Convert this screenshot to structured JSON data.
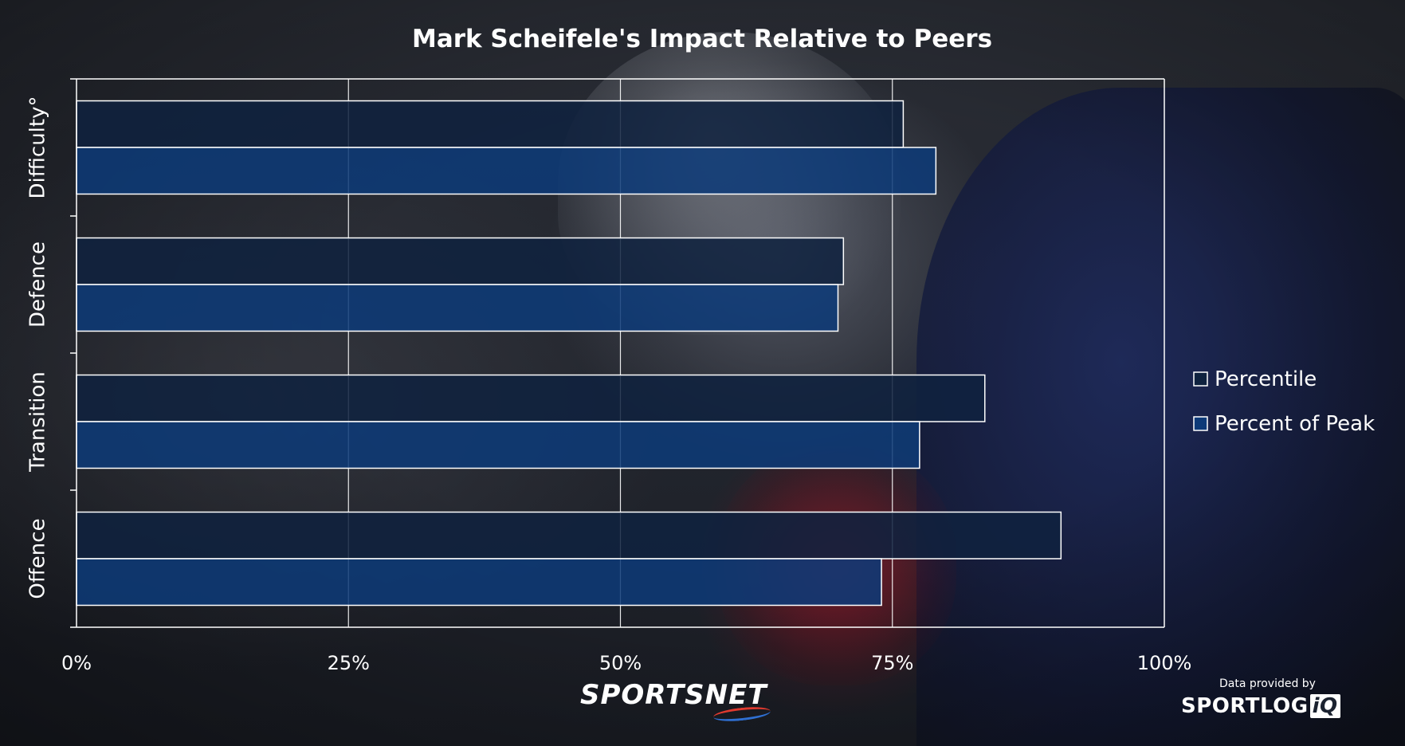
{
  "chart_data": {
    "type": "bar",
    "orientation": "horizontal",
    "title": "Mark Scheifele's Impact Relative to Peers",
    "categories": [
      "Difficulty°",
      "Defence",
      "Transition",
      "Offence"
    ],
    "series": [
      {
        "name": "Percentile",
        "values": [
          76,
          70.5,
          83.5,
          90.5
        ]
      },
      {
        "name": "Percent of Peak",
        "values": [
          79,
          70,
          77.5,
          74
        ]
      }
    ],
    "xlim": [
      0,
      100
    ],
    "x_ticks": [
      "0%",
      "25%",
      "50%",
      "75%",
      "100%"
    ],
    "x_tick_values": [
      0,
      25,
      50,
      75,
      100
    ],
    "grid": true,
    "legend_position": "right",
    "colors": {
      "Percentile": "#0f223f",
      "Percent of Peak": "#0d3a78",
      "bar_border": "#ffffff",
      "grid": "#ffffff"
    }
  },
  "branding": {
    "logo_text": "SPORTSNET",
    "credit_caption": "Data provided by",
    "credit_logo_main": "SPORTLOG",
    "credit_logo_suffix": "iQ"
  }
}
